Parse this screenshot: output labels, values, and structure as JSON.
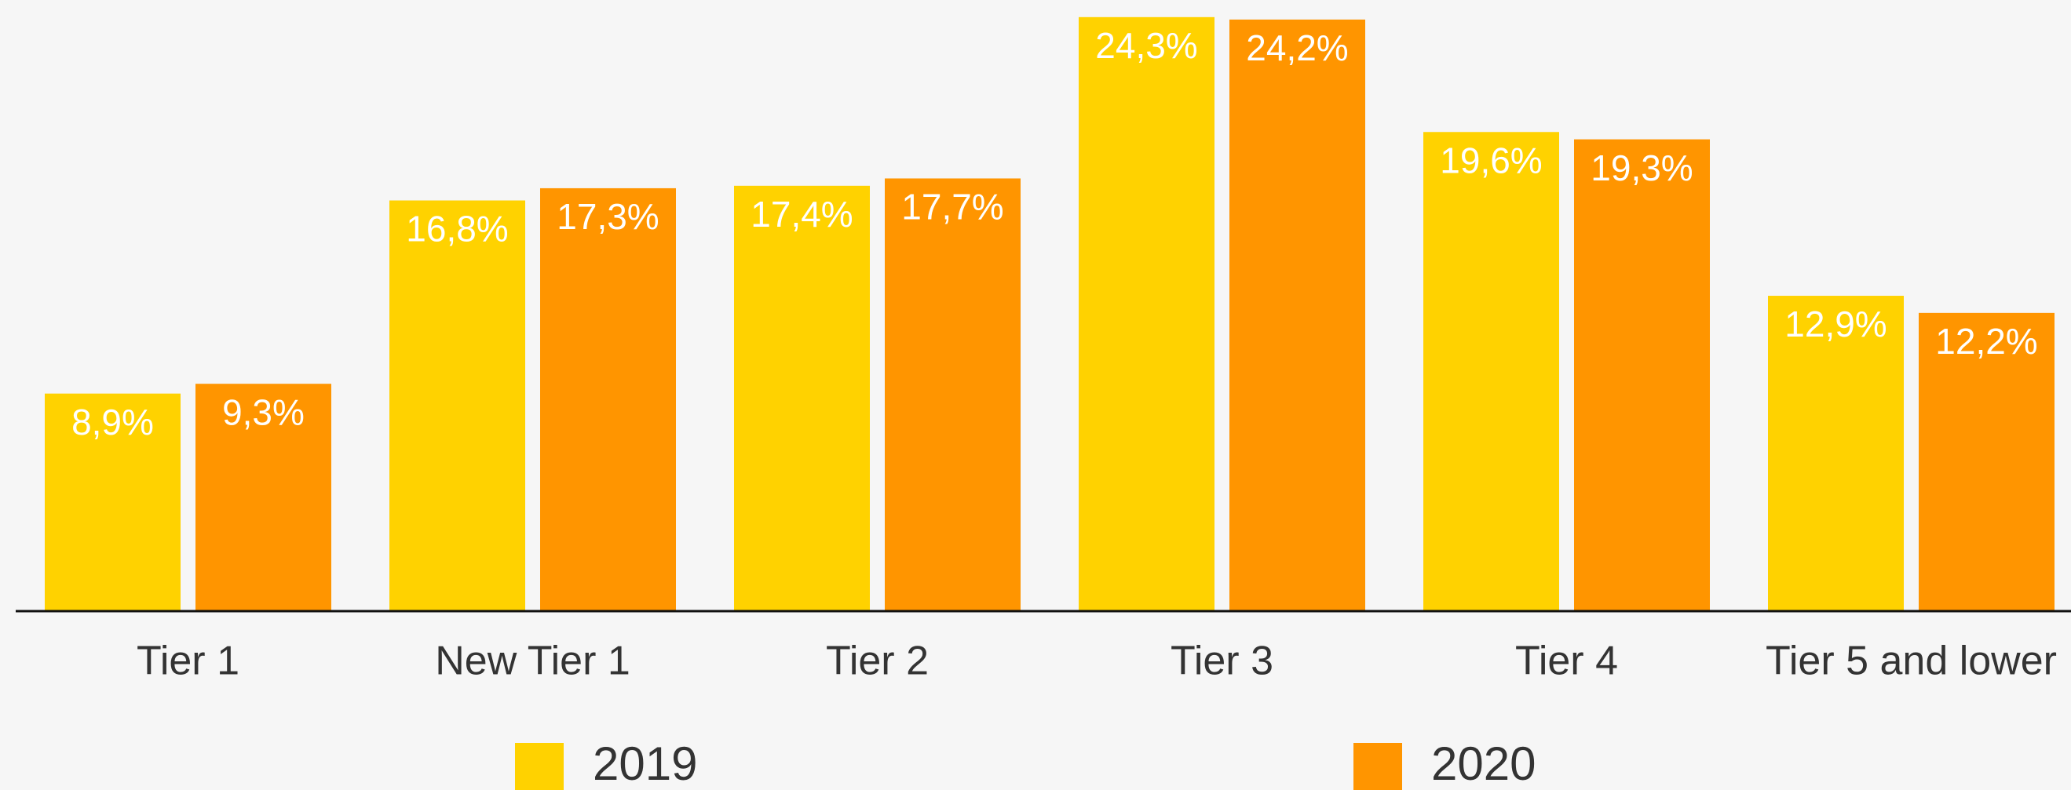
{
  "chart_data": {
    "type": "bar",
    "categories": [
      "Tier 1",
      "New Tier 1",
      "Tier 2",
      "Tier 3",
      "Tier 4",
      "Tier 5 and lower"
    ],
    "series": [
      {
        "name": "2019",
        "color": "#ffd200",
        "values": [
          8.9,
          16.8,
          17.4,
          24.3,
          19.6,
          12.9
        ],
        "value_labels": [
          "8,9%",
          "16,8%",
          "17,4%",
          "24,3%",
          "19,6%",
          "12,9%"
        ]
      },
      {
        "name": "2020",
        "color": "#ff9500",
        "values": [
          9.3,
          17.3,
          17.7,
          24.2,
          19.3,
          12.2
        ],
        "value_labels": [
          "9,3%",
          "17,3%",
          "17,7%",
          "24,2%",
          "19,3%",
          "12,2%"
        ]
      }
    ],
    "ylim": [
      0,
      25
    ],
    "legend": "bottom"
  }
}
